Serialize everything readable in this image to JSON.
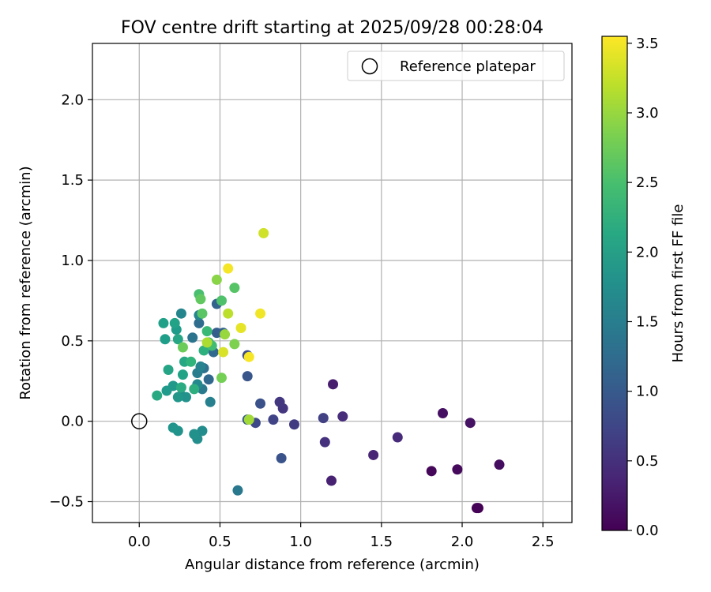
{
  "chart_data": {
    "type": "scatter",
    "title": "FOV centre drift starting at 2025/09/28 00:28:04",
    "xlabel": "Angular distance from reference (arcmin)",
    "ylabel": "Rotation from reference (arcmin)",
    "xlim": [
      -0.29,
      2.68
    ],
    "ylim": [
      -0.63,
      2.35
    ],
    "x_ticks": [
      0.0,
      0.5,
      1.0,
      1.5,
      2.0,
      2.5
    ],
    "x_tick_labels": [
      "0.0",
      "0.5",
      "1.0",
      "1.5",
      "2.0",
      "2.5"
    ],
    "y_ticks": [
      -0.5,
      0.0,
      0.5,
      1.0,
      1.5,
      2.0
    ],
    "y_tick_labels": [
      "−0.5",
      "0.0",
      "0.5",
      "1.0",
      "1.5",
      "2.0"
    ],
    "grid": true,
    "legend": {
      "placement": "top-right",
      "entries": [
        {
          "label": "Reference platepar",
          "marker": "open-circle"
        }
      ]
    },
    "reference_point": {
      "label": "Reference platepar",
      "x": 0.0,
      "y": 0.0
    },
    "colorbar": {
      "label": "Hours from first FF file",
      "colormap": "viridis",
      "range": [
        0.0,
        3.55
      ],
      "ticks": [
        0.0,
        0.5,
        1.0,
        1.5,
        2.0,
        2.5,
        3.0,
        3.5
      ],
      "tick_labels": [
        "0.0",
        "0.5",
        "1.0",
        "1.5",
        "2.0",
        "2.5",
        "3.0",
        "3.5"
      ]
    },
    "points": [
      {
        "x": 2.1,
        "y": -0.54,
        "hours": 0.0
      },
      {
        "x": 2.09,
        "y": -0.54,
        "hours": 0.02
      },
      {
        "x": 1.81,
        "y": -0.31,
        "hours": 0.06
      },
      {
        "x": 1.97,
        "y": -0.3,
        "hours": 0.09
      },
      {
        "x": 2.23,
        "y": -0.27,
        "hours": 0.12
      },
      {
        "x": 1.88,
        "y": 0.05,
        "hours": 0.15
      },
      {
        "x": 2.05,
        "y": -0.01,
        "hours": 0.18
      },
      {
        "x": 1.2,
        "y": 0.23,
        "hours": 0.28
      },
      {
        "x": 1.19,
        "y": -0.37,
        "hours": 0.33
      },
      {
        "x": 1.45,
        "y": -0.21,
        "hours": 0.36
      },
      {
        "x": 1.6,
        "y": -0.1,
        "hours": 0.42
      },
      {
        "x": 1.26,
        "y": 0.03,
        "hours": 0.45
      },
      {
        "x": 1.15,
        "y": -0.13,
        "hours": 0.5
      },
      {
        "x": 0.89,
        "y": 0.08,
        "hours": 0.55
      },
      {
        "x": 0.87,
        "y": 0.12,
        "hours": 0.58
      },
      {
        "x": 0.96,
        "y": -0.02,
        "hours": 0.62
      },
      {
        "x": 1.14,
        "y": 0.02,
        "hours": 0.68
      },
      {
        "x": 0.83,
        "y": 0.01,
        "hours": 0.72
      },
      {
        "x": 0.72,
        "y": -0.01,
        "hours": 0.78
      },
      {
        "x": 0.67,
        "y": 0.41,
        "hours": 0.82
      },
      {
        "x": 0.75,
        "y": 0.11,
        "hours": 0.88
      },
      {
        "x": 0.88,
        "y": -0.23,
        "hours": 0.92
      },
      {
        "x": 0.67,
        "y": 0.28,
        "hours": 0.95
      },
      {
        "x": 0.67,
        "y": 0.01,
        "hours": 1.0
      },
      {
        "x": 0.48,
        "y": 0.55,
        "hours": 1.05
      },
      {
        "x": 0.52,
        "y": 0.55,
        "hours": 1.1
      },
      {
        "x": 0.48,
        "y": 0.73,
        "hours": 1.12
      },
      {
        "x": 0.43,
        "y": 0.26,
        "hours": 1.18
      },
      {
        "x": 0.46,
        "y": 0.43,
        "hours": 1.2
      },
      {
        "x": 0.37,
        "y": 0.61,
        "hours": 1.25
      },
      {
        "x": 0.4,
        "y": 0.33,
        "hours": 1.3
      },
      {
        "x": 0.33,
        "y": 0.52,
        "hours": 1.35
      },
      {
        "x": 0.61,
        "y": -0.43,
        "hours": 1.42
      },
      {
        "x": 0.39,
        "y": 0.2,
        "hours": 1.45
      },
      {
        "x": 0.36,
        "y": 0.3,
        "hours": 1.52
      },
      {
        "x": 0.44,
        "y": 0.12,
        "hours": 1.55
      },
      {
        "x": 0.38,
        "y": 0.34,
        "hours": 1.58
      },
      {
        "x": 0.37,
        "y": 0.66,
        "hours": 1.6
      },
      {
        "x": 0.26,
        "y": 0.67,
        "hours": 1.62
      },
      {
        "x": 0.36,
        "y": 0.23,
        "hours": 1.68
      },
      {
        "x": 0.26,
        "y": 0.16,
        "hours": 1.7
      },
      {
        "x": 0.39,
        "y": -0.06,
        "hours": 1.72
      },
      {
        "x": 0.36,
        "y": -0.11,
        "hours": 1.75
      },
      {
        "x": 0.34,
        "y": -0.08,
        "hours": 1.78
      },
      {
        "x": 0.29,
        "y": 0.15,
        "hours": 1.8
      },
      {
        "x": 0.24,
        "y": -0.06,
        "hours": 1.82
      },
      {
        "x": 0.21,
        "y": -0.04,
        "hours": 1.85
      },
      {
        "x": 0.24,
        "y": 0.15,
        "hours": 1.88
      },
      {
        "x": 0.21,
        "y": 0.22,
        "hours": 1.9
      },
      {
        "x": 0.17,
        "y": 0.19,
        "hours": 1.92
      },
      {
        "x": 0.23,
        "y": 0.57,
        "hours": 1.95
      },
      {
        "x": 0.16,
        "y": 0.51,
        "hours": 1.98
      },
      {
        "x": 0.15,
        "y": 0.61,
        "hours": 2.0
      },
      {
        "x": 0.22,
        "y": 0.61,
        "hours": 2.03
      },
      {
        "x": 0.27,
        "y": 0.29,
        "hours": 2.05
      },
      {
        "x": 0.18,
        "y": 0.32,
        "hours": 2.08
      },
      {
        "x": 0.24,
        "y": 0.51,
        "hours": 2.1
      },
      {
        "x": 0.28,
        "y": 0.37,
        "hours": 2.12
      },
      {
        "x": 0.11,
        "y": 0.16,
        "hours": 2.15
      },
      {
        "x": 0.26,
        "y": 0.21,
        "hours": 2.18
      },
      {
        "x": 0.34,
        "y": 0.2,
        "hours": 2.22
      },
      {
        "x": 0.4,
        "y": 0.44,
        "hours": 2.25
      },
      {
        "x": 0.32,
        "y": 0.37,
        "hours": 2.3
      },
      {
        "x": 0.43,
        "y": 0.49,
        "hours": 2.35
      },
      {
        "x": 0.42,
        "y": 0.56,
        "hours": 2.4
      },
      {
        "x": 0.45,
        "y": 0.47,
        "hours": 2.45
      },
      {
        "x": 0.37,
        "y": 0.79,
        "hours": 2.5
      },
      {
        "x": 0.51,
        "y": 0.75,
        "hours": 2.55
      },
      {
        "x": 0.59,
        "y": 0.83,
        "hours": 2.6
      },
      {
        "x": 0.39,
        "y": 0.67,
        "hours": 2.62
      },
      {
        "x": 0.38,
        "y": 0.76,
        "hours": 2.68
      },
      {
        "x": 0.27,
        "y": 0.46,
        "hours": 2.75
      },
      {
        "x": 0.51,
        "y": 0.27,
        "hours": 2.8
      },
      {
        "x": 0.59,
        "y": 0.48,
        "hours": 2.85
      },
      {
        "x": 0.48,
        "y": 0.88,
        "hours": 2.92
      },
      {
        "x": 0.53,
        "y": 0.54,
        "hours": 3.0
      },
      {
        "x": 0.68,
        "y": 0.01,
        "hours": 3.05
      },
      {
        "x": 0.42,
        "y": 0.49,
        "hours": 3.1
      },
      {
        "x": 0.55,
        "y": 0.67,
        "hours": 3.2
      },
      {
        "x": 0.77,
        "y": 1.17,
        "hours": 3.3
      },
      {
        "x": 0.52,
        "y": 0.43,
        "hours": 3.35
      },
      {
        "x": 0.63,
        "y": 0.58,
        "hours": 3.42
      },
      {
        "x": 0.75,
        "y": 0.67,
        "hours": 3.48
      },
      {
        "x": 0.55,
        "y": 0.95,
        "hours": 3.5
      },
      {
        "x": 0.68,
        "y": 0.4,
        "hours": 3.52
      }
    ]
  }
}
